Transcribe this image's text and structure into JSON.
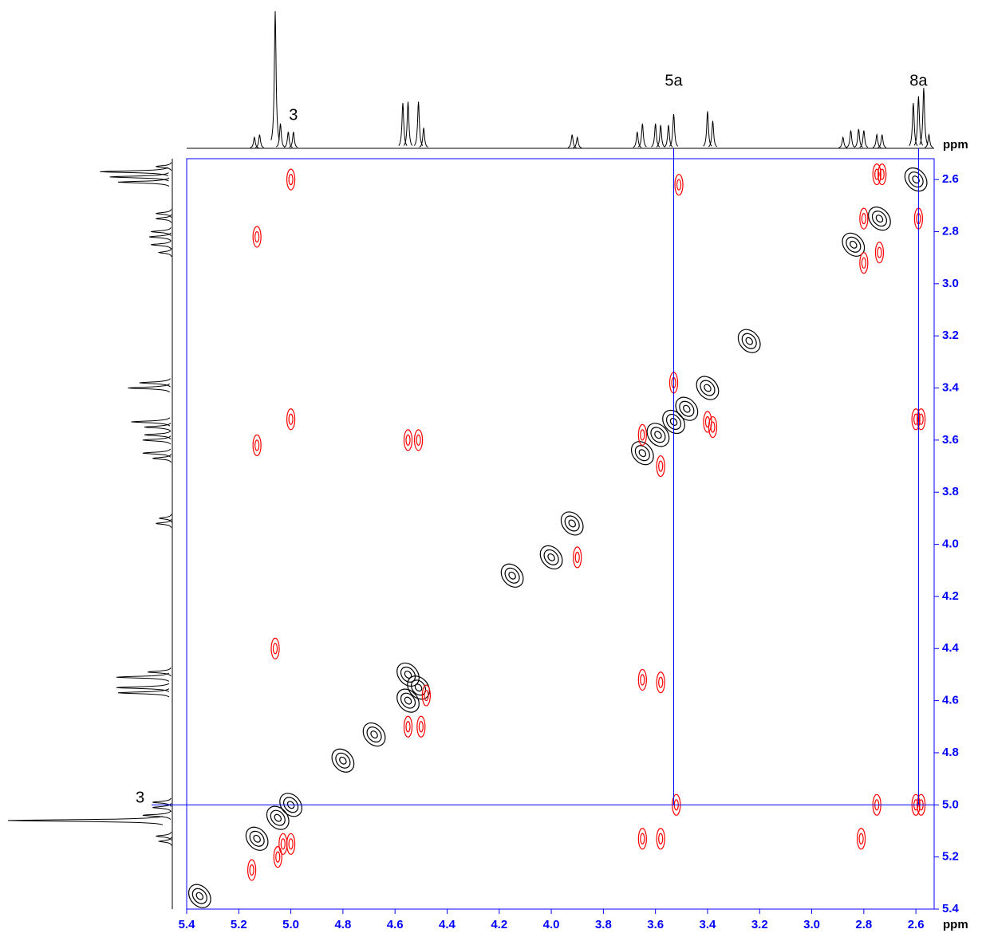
{
  "chart_data": {
    "type": "contour2d",
    "xlabel": "ppm",
    "ylabel": "ppm",
    "xlim": [
      5.4,
      2.53
    ],
    "ylim": [
      2.52,
      5.4
    ],
    "xticks": [
      5.4,
      5.2,
      {
        "value": 5,
        "label": "5.0"
      },
      4.8,
      4.6,
      4.4,
      4.2,
      {
        "value": 4,
        "label": "4.0"
      },
      3.8,
      3.6,
      3.4,
      3.2,
      {
        "value": 3,
        "label": "3.0"
      },
      2.8,
      2.6
    ],
    "yticks": [
      2.6,
      2.8,
      {
        "value": 3,
        "label": "3.0"
      },
      3.2,
      3.4,
      3.6,
      3.8,
      {
        "value": 4,
        "label": "4.0"
      },
      4.2,
      4.4,
      4.6,
      4.8,
      {
        "value": 5,
        "label": "5.0"
      },
      5.2,
      5.4
    ],
    "axis_color": "#0000ff",
    "contours": [
      {
        "color": "#000000",
        "x": [
          2.6,
          2.74,
          2.84,
          3.24,
          3.4,
          3.48,
          3.53,
          3.59,
          3.65,
          3.92,
          4.0,
          4.15,
          4.51,
          4.55,
          4.55,
          4.68,
          4.8,
          5.0,
          5.05,
          5.13,
          5.35
        ],
        "y": [
          2.6,
          2.75,
          2.85,
          3.22,
          3.4,
          3.48,
          3.53,
          3.58,
          3.65,
          3.92,
          4.05,
          4.12,
          4.55,
          4.5,
          4.6,
          4.73,
          4.83,
          5.0,
          5.05,
          5.13,
          5.35
        ]
      },
      {
        "color": "#ff0000",
        "x": [
          5.0,
          5.13,
          3.51,
          2.75,
          2.73,
          2.59,
          2.8,
          2.74,
          2.8,
          5.13,
          5.0,
          4.55,
          4.51,
          3.53,
          3.4,
          3.38,
          3.65,
          3.58,
          2.6,
          2.58,
          3.65,
          3.58,
          5.06,
          4.55,
          4.5,
          3.52,
          2.75,
          2.6,
          2.58,
          3.65,
          3.58,
          2.81,
          5.03,
          5.0,
          3.9,
          4.48,
          5.05,
          5.15
        ],
        "y": [
          2.6,
          2.82,
          2.62,
          2.58,
          2.58,
          2.75,
          2.75,
          2.88,
          2.92,
          3.62,
          3.52,
          3.6,
          3.6,
          3.38,
          3.53,
          3.55,
          3.58,
          3.7,
          3.52,
          3.52,
          4.52,
          4.53,
          4.4,
          4.7,
          4.7,
          5.0,
          5.0,
          5.0,
          5.0,
          5.13,
          5.13,
          5.13,
          5.15,
          5.15,
          4.05,
          4.58,
          5.2,
          5.25
        ]
      }
    ],
    "projection": {
      "color": "#000000",
      "ppm": [
        5.14,
        5.12,
        5.06,
        5.04,
        5.01,
        4.99,
        4.57,
        4.55,
        4.51,
        4.49,
        3.92,
        3.9,
        3.67,
        3.65,
        3.6,
        3.58,
        3.55,
        3.53,
        3.4,
        3.38,
        2.88,
        2.85,
        2.82,
        2.8,
        2.75,
        2.73,
        2.61,
        2.59,
        2.57,
        2.55
      ],
      "intensity": [
        0.08,
        0.1,
        1.0,
        0.18,
        0.12,
        0.12,
        0.33,
        0.34,
        0.34,
        0.15,
        0.1,
        0.08,
        0.12,
        0.18,
        0.18,
        0.17,
        0.17,
        0.25,
        0.27,
        0.2,
        0.08,
        0.13,
        0.14,
        0.13,
        0.1,
        0.1,
        0.33,
        0.38,
        0.44,
        0.1
      ]
    },
    "annotations": [
      {
        "label": "3",
        "x": 4.99,
        "line": false
      },
      {
        "label": "5a",
        "x": 3.53,
        "line": true
      },
      {
        "label": "8a",
        "x": 2.59,
        "line": true
      }
    ],
    "left_annotation": {
      "label": "3",
      "y": 5.0
    }
  }
}
